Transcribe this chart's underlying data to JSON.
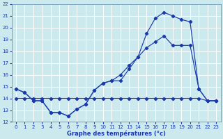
{
  "title": "Graphe des températures (°c)",
  "bg_color": "#cce9ee",
  "grid_color": "#aaccdd",
  "grid_major_color": "#ffffff",
  "line_color": "#1a3aab",
  "xlim": [
    -0.5,
    23.5
  ],
  "ylim": [
    12,
    22
  ],
  "xticks": [
    0,
    1,
    2,
    3,
    4,
    5,
    6,
    7,
    8,
    9,
    10,
    11,
    12,
    13,
    14,
    15,
    16,
    17,
    18,
    19,
    20,
    21,
    22,
    23
  ],
  "yticks": [
    12,
    13,
    14,
    15,
    16,
    17,
    18,
    19,
    20,
    21,
    22
  ],
  "line1_x": [
    0,
    1,
    2,
    3,
    4,
    5,
    6,
    7,
    8,
    9,
    10,
    11,
    12,
    13,
    14,
    15,
    16,
    17,
    18,
    19,
    20,
    21,
    22,
    23
  ],
  "line1_y": [
    14.8,
    14.5,
    13.8,
    13.8,
    12.8,
    12.8,
    12.5,
    13.1,
    13.5,
    14.7,
    15.3,
    15.5,
    15.5,
    16.5,
    17.5,
    19.5,
    20.8,
    21.3,
    21.0,
    20.7,
    20.5,
    14.8,
    13.8,
    13.8
  ],
  "line2_x": [
    0,
    1,
    2,
    3,
    4,
    5,
    6,
    7,
    8,
    9,
    10,
    11,
    12,
    13,
    14,
    15,
    16,
    17,
    18,
    19,
    20,
    21,
    22,
    23
  ],
  "line2_y": [
    14.8,
    14.5,
    13.8,
    13.8,
    12.8,
    12.8,
    12.5,
    13.1,
    13.5,
    14.7,
    15.3,
    15.5,
    16.0,
    16.8,
    17.5,
    18.3,
    18.8,
    19.3,
    18.5,
    18.5,
    18.5,
    14.8,
    13.8,
    13.8
  ],
  "line3_x": [
    0,
    1,
    2,
    3,
    4,
    5,
    6,
    7,
    8,
    9,
    10,
    11,
    12,
    13,
    14,
    15,
    16,
    17,
    18,
    19,
    20,
    21,
    22,
    23
  ],
  "line3_y": [
    14.0,
    14.0,
    14.0,
    14.0,
    14.0,
    14.0,
    14.0,
    14.0,
    14.0,
    14.0,
    14.0,
    14.0,
    14.0,
    14.0,
    14.0,
    14.0,
    14.0,
    14.0,
    14.0,
    14.0,
    14.0,
    14.0,
    13.8,
    13.8
  ],
  "xlabel_fontsize": 6.0,
  "tick_fontsize": 5.0
}
